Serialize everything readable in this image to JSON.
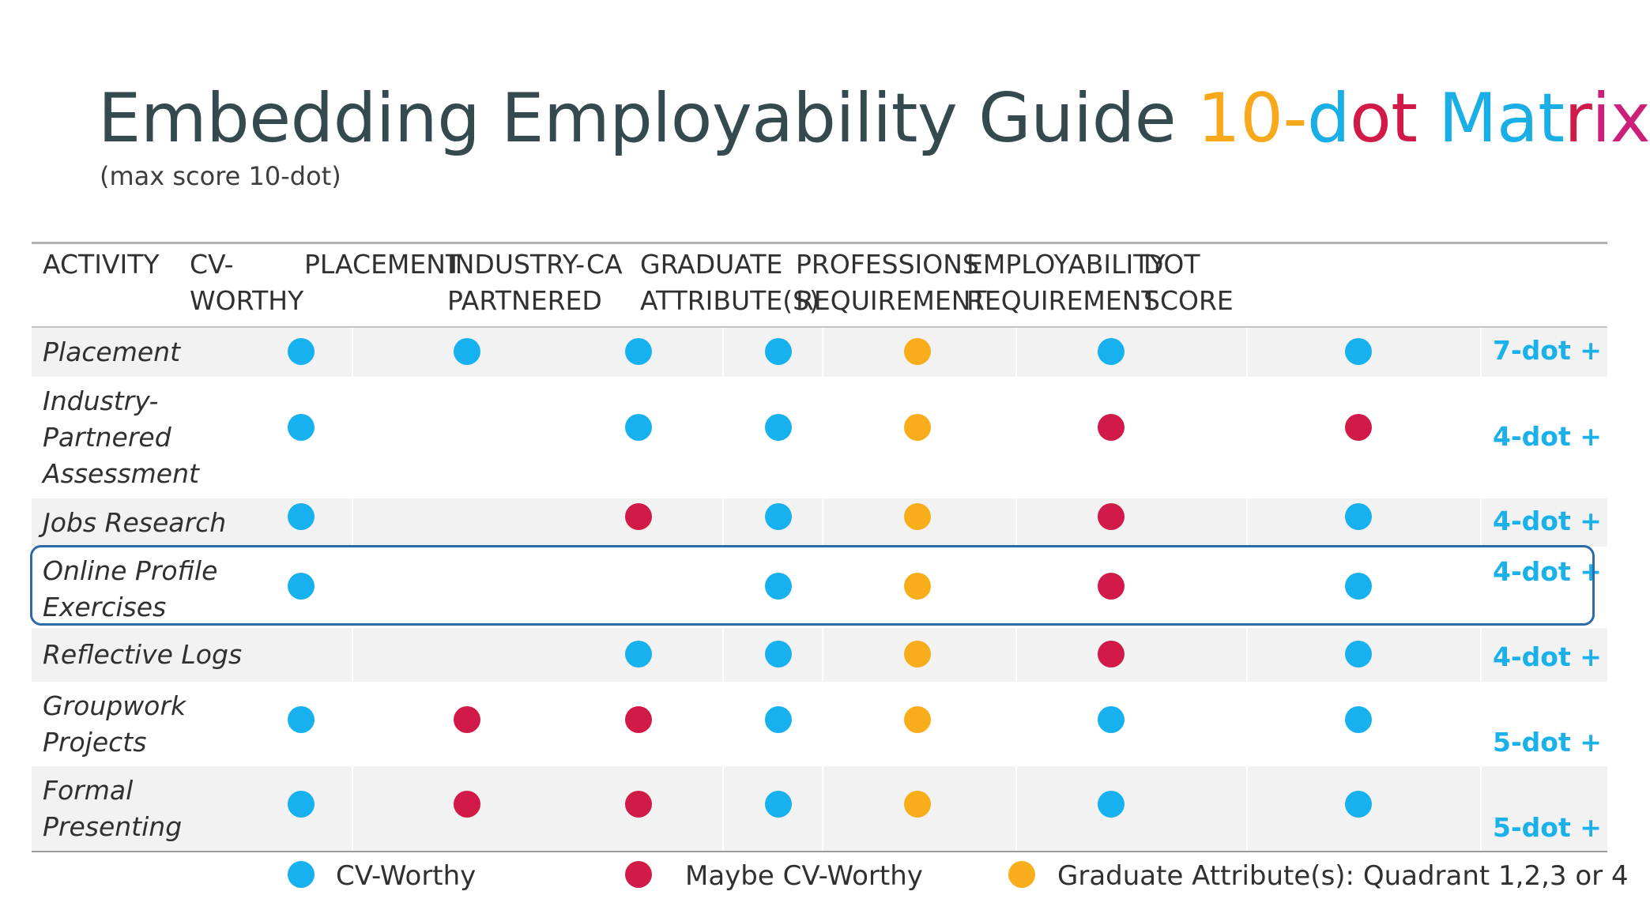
{
  "title": {
    "part1": "Embedding Employability Guide ",
    "part2": "10-",
    "part3": "dot ",
    "part4": "Matr",
    "part5": "ix"
  },
  "subtitle": "(max score 10-dot)",
  "colors": {
    "blue": "#16b1ee",
    "red": "#d11a47",
    "orange": "#f8ae1a",
    "title_orange": "#f7a81b",
    "title_blue": "#1aaee7",
    "title_red": "#d11a47",
    "title_magenta": "#cc1f7a",
    "score_blue": "#1ab0ea"
  },
  "columns": [
    {
      "line1": "ACTIVITY",
      "line2": ""
    },
    {
      "line1": "CV-",
      "line2": "WORTHY"
    },
    {
      "line1": "PLACEMENT",
      "line2": ""
    },
    {
      "line1": "INDUSTRY-",
      "line2": "PARTNERED"
    },
    {
      "line1": "CA",
      "line2": ""
    },
    {
      "line1": "GRADUATE",
      "line2": "ATTRIBUTE(S)"
    },
    {
      "line1": "PROFESSIONS",
      "line2": "REQUIREMENT"
    },
    {
      "line1": "EMPLOYABILITY",
      "line2": "REQUIREMENT"
    },
    {
      "line1": "DOT",
      "line2": "SCORE"
    }
  ],
  "rows": [
    {
      "activity": [
        "Placement"
      ],
      "dots": [
        "blue",
        "blue",
        "blue",
        "blue",
        "orange",
        "blue",
        "blue"
      ],
      "score": "7-dot +"
    },
    {
      "activity": [
        "Industry-",
        "Partnered",
        "Assessment"
      ],
      "dots": [
        "blue",
        "",
        "blue",
        "blue",
        "orange",
        "red",
        "red"
      ],
      "score": "4-dot +"
    },
    {
      "activity": [
        "Jobs Research"
      ],
      "dots": [
        "blue",
        "",
        "red",
        "blue",
        "orange",
        "red",
        "blue"
      ],
      "score": "4-dot +"
    },
    {
      "activity": [
        "Online Profile",
        "Exercises"
      ],
      "dots": [
        "blue",
        "",
        "",
        "blue",
        "orange",
        "red",
        "blue"
      ],
      "score": "4-dot +"
    },
    {
      "activity": [
        "Reflective Logs"
      ],
      "dots": [
        "",
        "",
        "blue",
        "blue",
        "orange",
        "red",
        "blue"
      ],
      "score": "4-dot +"
    },
    {
      "activity": [
        "Groupwork",
        "Projects"
      ],
      "dots": [
        "blue",
        "red",
        "red",
        "blue",
        "orange",
        "blue",
        "blue"
      ],
      "score": "5-dot +"
    },
    {
      "activity": [
        "Formal",
        "Presenting"
      ],
      "dots": [
        "blue",
        "red",
        "red",
        "blue",
        "orange",
        "blue",
        "blue"
      ],
      "score": "5-dot +"
    }
  ],
  "legend": [
    {
      "color": "blue",
      "label": "CV-Worthy"
    },
    {
      "color": "red",
      "label": "Maybe CV-Worthy"
    },
    {
      "color": "orange",
      "label": "Graduate Attribute(s): Quadrant 1,2,3 or 4"
    }
  ]
}
